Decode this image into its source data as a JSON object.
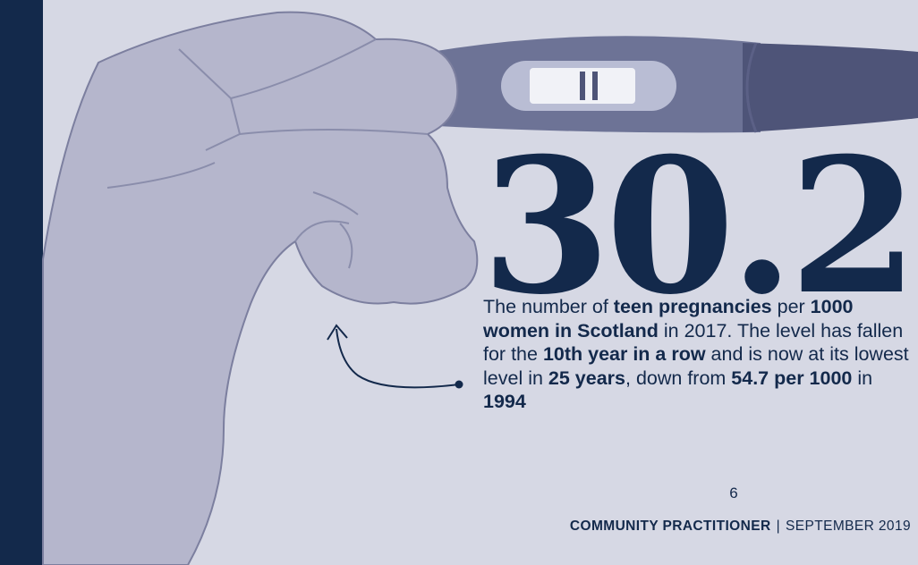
{
  "figure": {
    "number": "30.2"
  },
  "caption": {
    "parts": [
      {
        "text": "The number of ",
        "bold": false
      },
      {
        "text": "teen pregnancies",
        "bold": true
      },
      {
        "text": " per ",
        "bold": false
      },
      {
        "text": "1000 women in Scotland",
        "bold": true
      },
      {
        "text": " in 2017. The level has fallen for the ",
        "bold": false
      },
      {
        "text": "10th year in a row",
        "bold": true
      },
      {
        "text": " and is now at its lowest level in ",
        "bold": false
      },
      {
        "text": "25 years",
        "bold": true
      },
      {
        "text": ", down from ",
        "bold": false
      },
      {
        "text": "54.7 per 1000",
        "bold": true
      },
      {
        "text": " in ",
        "bold": false
      },
      {
        "text": "1994",
        "bold": true
      }
    ]
  },
  "footer": {
    "page_number": "6",
    "magazine": "COMMUNITY PRACTITIONER",
    "separator": "|",
    "issue": "SEPTEMBER 2019"
  },
  "colors": {
    "background": "#d6d8e4",
    "navy": "#13294b",
    "hand_fill": "#b5b6cc",
    "hand_outline": "#7c7f9f",
    "test_body": "#6d7396",
    "test_tip": "#4e5478"
  },
  "icons": {
    "hand": "hand-holding-test-illustration",
    "test": "pregnancy-test-icon",
    "arrow": "curved-arrow-icon"
  }
}
